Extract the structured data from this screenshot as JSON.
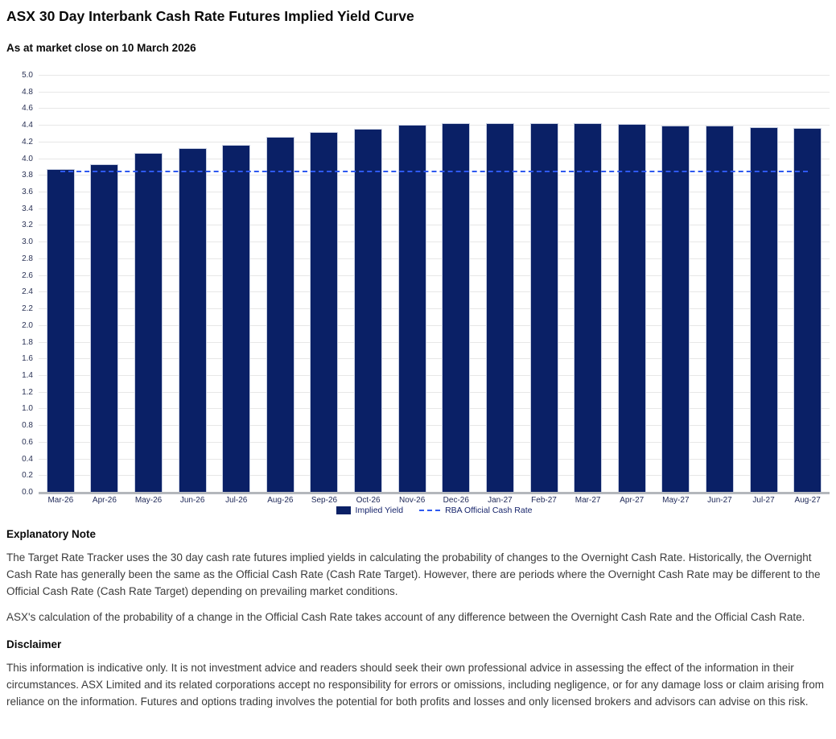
{
  "page": {
    "title": "ASX 30 Day Interbank Cash Rate Futures Implied Yield Curve",
    "subtitle": "As at market close on 10 March 2026"
  },
  "chart_data": {
    "type": "bar",
    "title": "ASX 30 Day Interbank Cash Rate Futures Implied Yield Curve",
    "subtitle": "As at market close on 10 March 2026",
    "categories": [
      "Mar-26",
      "Apr-26",
      "May-26",
      "Jun-26",
      "Jul-26",
      "Aug-26",
      "Sep-26",
      "Oct-26",
      "Nov-26",
      "Dec-26",
      "Jan-27",
      "Feb-27",
      "Mar-27",
      "Apr-27",
      "May-27",
      "Jun-27",
      "Jul-27",
      "Aug-27"
    ],
    "series": [
      {
        "name": "Implied Yield",
        "type": "bar",
        "color": "#0a2066",
        "values": [
          3.885,
          3.935,
          4.075,
          4.135,
          4.17,
          4.265,
          4.32,
          4.36,
          4.415,
          4.43,
          4.43,
          4.435,
          4.43,
          4.42,
          4.405,
          4.405,
          4.385,
          4.375
        ]
      },
      {
        "name": "RBA Official Cash Rate",
        "type": "dashed-line",
        "color": "#2e59f0",
        "value": 3.85
      }
    ],
    "ylim": [
      0,
      5
    ],
    "ytick_step": 0.2,
    "grid": true,
    "legend_position": "bottom",
    "xlabel": "",
    "ylabel": ""
  },
  "notes": {
    "explanatory_heading": "Explanatory Note",
    "explanatory_p1": "The Target Rate Tracker uses the 30 day cash rate futures implied yields in calculating the probability of changes to the Overnight Cash Rate. Historically, the Overnight Cash Rate has generally been the same as the Official Cash Rate (Cash Rate Target). However, there are periods where the Overnight Cash Rate may be different to the Official Cash Rate (Cash Rate Target) depending on prevailing market conditions.",
    "explanatory_p2": "ASX's calculation of the probability of a change in the Official Cash Rate takes account of any difference between the Overnight Cash Rate and the Official Cash Rate.",
    "disclaimer_heading": "Disclaimer",
    "disclaimer_p1": "This information is indicative only. It is not investment advice and readers should seek their own professional advice in assessing the effect of the information in their circumstances. ASX Limited and its related corporations accept no responsibility for errors or omissions, including negligence, or for any damage loss or claim arising from reliance on the information. Futures and options trading involves the potential for both profits and losses and only licensed brokers and advisors can advise on this risk."
  }
}
